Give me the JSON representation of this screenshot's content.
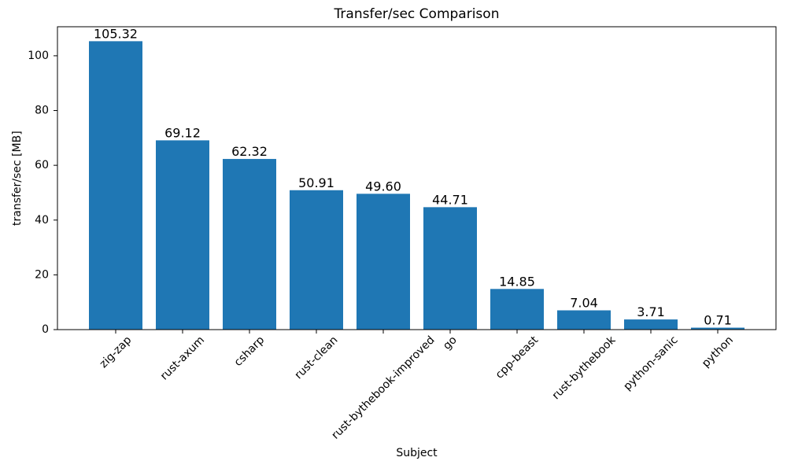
{
  "chart_data": {
    "type": "bar",
    "title": "Transfer/sec Comparison",
    "xlabel": "Subject",
    "ylabel": "transfer/sec [MB]",
    "categories": [
      "zig-zap",
      "rust-axum",
      "csharp",
      "rust-clean",
      "rust-bythebook-improved",
      "go",
      "cpp-beast",
      "rust-bythebook",
      "python-sanic",
      "python"
    ],
    "values": [
      105.32,
      69.12,
      62.32,
      50.91,
      49.6,
      44.71,
      14.85,
      7.04,
      3.71,
      0.71
    ],
    "value_labels": [
      "105.32",
      "69.12",
      "62.32",
      "50.91",
      "49.60",
      "44.71",
      "14.85",
      "7.04",
      "3.71",
      "0.71"
    ],
    "yticks": [
      0,
      20,
      40,
      60,
      80,
      100
    ],
    "ylim": [
      0,
      110.6
    ],
    "x_tick_rotation": 45,
    "grid": false,
    "legend": null,
    "bar_color": "#1f77b4",
    "axis_color": "#000000",
    "text_color": "#000000",
    "background_color": "#ffffff"
  }
}
